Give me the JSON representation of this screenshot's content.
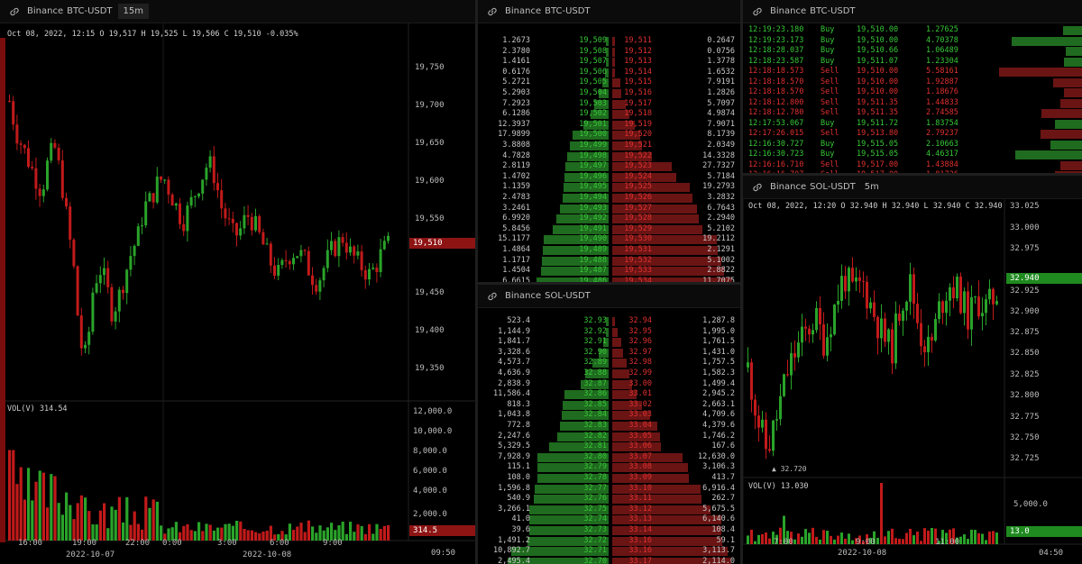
{
  "colors": {
    "up": "#2aa32a",
    "down": "#c21a1a",
    "bid_text": "#37c837",
    "ask_text": "#e03030",
    "bid_bar": "#1f6b1f",
    "ask_bar": "#6b1414",
    "text": "#c8c8c8"
  },
  "panels": {
    "chart_btc": {
      "exchange": "Binance",
      "symbol": "BTC-USDT",
      "timeframe": "15m",
      "ohlc": {
        "date": "Oct 08, 2022, 12:15",
        "o": "19,517",
        "h": "19,525",
        "l": "19,506",
        "c": "19,510",
        "chg": "-0.035%"
      },
      "price_axis": [
        "19,750",
        "19,700",
        "19,650",
        "19,600",
        "19,550",
        "19,510",
        "19,450",
        "19,400",
        "19,350"
      ],
      "current_price": "19,510",
      "volume": {
        "label": "VOL(V)",
        "value": "314.54",
        "axis": [
          "12,000.0",
          "10,000.0",
          "8,000.0",
          "6,000.0",
          "4,000.0",
          "2,000.0"
        ],
        "current": "314.5"
      },
      "time_axis": [
        "16:00",
        "19:00",
        "22:00",
        "0:00",
        "3:00",
        "6:00",
        "9:00"
      ],
      "date_axis": [
        "2022-10-07",
        "2022-10-08"
      ],
      "clock": "09:50"
    },
    "book_btc": {
      "exchange": "Binance",
      "symbol": "BTC-USDT",
      "rows": [
        [
          "1.2673",
          "19,509",
          "19,511",
          "0.2647"
        ],
        [
          "2.3780",
          "19,508",
          "19,512",
          "0.0756"
        ],
        [
          "1.4161",
          "19,507",
          "19,513",
          "1.3778"
        ],
        [
          "0.6176",
          "19,506",
          "19,514",
          "1.6532"
        ],
        [
          "5.2721",
          "19,505",
          "19,515",
          "7.9191"
        ],
        [
          "5.2903",
          "19,504",
          "19,516",
          "1.2826"
        ],
        [
          "7.2923",
          "19,503",
          "19,517",
          "5.7097"
        ],
        [
          "6.1286",
          "19,502",
          "19,518",
          "4.9874"
        ],
        [
          "12.3937",
          "19,501",
          "19,519",
          "7.9071"
        ],
        [
          "17.9899",
          "19,500",
          "19,520",
          "8.1739"
        ],
        [
          "3.8808",
          "19,499",
          "19,521",
          "2.0349"
        ],
        [
          "4.7828",
          "19,498",
          "19,522",
          "14.3328"
        ],
        [
          "2.8119",
          "19,497",
          "19,523",
          "27.7327"
        ],
        [
          "1.4702",
          "19,496",
          "19,524",
          "5.7184"
        ],
        [
          "1.1359",
          "19,495",
          "19,525",
          "19.2793"
        ],
        [
          "2.4783",
          "19,494",
          "19,526",
          "3.2832"
        ],
        [
          "3.2461",
          "19,493",
          "19,527",
          "6.7643"
        ],
        [
          "6.9920",
          "19,492",
          "19,528",
          "2.2940"
        ],
        [
          "5.8456",
          "19,491",
          "19,529",
          "5.2102"
        ],
        [
          "15.1177",
          "19,490",
          "19,530",
          "19.2112"
        ],
        [
          "1.4864",
          "19,489",
          "19,531",
          "2.1291"
        ],
        [
          "1.1717",
          "19,488",
          "19,532",
          "5.1002"
        ],
        [
          "1.4504",
          "19,487",
          "19,533",
          "2.8822"
        ],
        [
          "6.6615",
          "19,486",
          "19,534",
          "11.7075"
        ]
      ]
    },
    "book_sol": {
      "exchange": "Binance",
      "symbol": "SOL-USDT",
      "rows": [
        [
          "523.4",
          "32.93",
          "32.94",
          "1,287.8"
        ],
        [
          "1,144.9",
          "32.92",
          "32.95",
          "1,995.0"
        ],
        [
          "1,841.7",
          "32.91",
          "32.96",
          "1,761.5"
        ],
        [
          "3,328.6",
          "32.90",
          "32.97",
          "1,431.0"
        ],
        [
          "4,573.7",
          "32.89",
          "32.98",
          "1,757.5"
        ],
        [
          "4,636.9",
          "32.88",
          "32.99",
          "1,582.3"
        ],
        [
          "2,838.9",
          "32.87",
          "33.00",
          "1,499.4"
        ],
        [
          "11,586.4",
          "32.86",
          "33.01",
          "2,945.2"
        ],
        [
          "818.3",
          "32.85",
          "33.02",
          "2,663.1"
        ],
        [
          "1,043.8",
          "32.84",
          "33.03",
          "4,709.6"
        ],
        [
          "772.8",
          "32.83",
          "33.04",
          "4,379.6"
        ],
        [
          "2,247.6",
          "32.82",
          "33.05",
          "1,746.2"
        ],
        [
          "5,329.5",
          "32.81",
          "33.06",
          "167.6"
        ],
        [
          "7,928.9",
          "32.80",
          "33.07",
          "12,630.0"
        ],
        [
          "115.1",
          "32.79",
          "33.08",
          "3,106.3"
        ],
        [
          "108.0",
          "32.78",
          "33.09",
          "413.7"
        ],
        [
          "1,596.8",
          "32.77",
          "33.10",
          "6,916.4"
        ],
        [
          "540.9",
          "32.76",
          "33.11",
          "262.7"
        ],
        [
          "3,266.1",
          "32.75",
          "33.12",
          "5,675.5"
        ],
        [
          "41.0",
          "32.74",
          "33.13",
          "6,140.6"
        ],
        [
          "39.6",
          "32.73",
          "33.14",
          "108.4"
        ],
        [
          "1,491.2",
          "32.72",
          "33.16",
          "59.1"
        ],
        [
          "10,892.7",
          "32.71",
          "33.16",
          "3,113.7"
        ],
        [
          "2,495.4",
          "32.70",
          "33.17",
          "2,114.0"
        ]
      ]
    },
    "trades_btc": {
      "exchange": "Binance",
      "symbol": "BTC-USDT",
      "rows": [
        [
          "12:19:23.180",
          "Buy",
          "19,510.00",
          "1.27625",
          0.18
        ],
        [
          "12:19:23.173",
          "Buy",
          "19,510.00",
          "4.70378",
          0.0
        ],
        [
          "12:18:28.037",
          "Buy",
          "19,510.66",
          "1.06489",
          0.0
        ],
        [
          "12:18:23.587",
          "Buy",
          "19,511.07",
          "1.23304",
          0.0
        ],
        [
          "12:18:18.573",
          "Sell",
          "19,510.00",
          "5.58161",
          0.0
        ],
        [
          "12:18:18.570",
          "Sell",
          "19,510.00",
          "1.92887",
          0.06
        ],
        [
          "12:18:18.570",
          "Sell",
          "19,510.00",
          "1.18676",
          0.0
        ],
        [
          "12:18:12.800",
          "Sell",
          "19,511.35",
          "1.44833",
          0.04
        ],
        [
          "12:18:12.780",
          "Sell",
          "19,511.35",
          "2.74585",
          0.0
        ],
        [
          "12:17:53.067",
          "Buy",
          "19,511.72",
          "1.83754",
          0.0
        ],
        [
          "12:17:26.015",
          "Sell",
          "19,513.80",
          "2.79237",
          0.0
        ],
        [
          "12:16:30.727",
          "Buy",
          "19,515.05",
          "2.10663",
          0.0
        ],
        [
          "12:16:30.723",
          "Buy",
          "19,515.05",
          "4.46317",
          0.0
        ],
        [
          "12:16:16.710",
          "Sell",
          "19,517.00",
          "1.43884",
          0.0
        ],
        [
          "12:16:16.707",
          "Sell",
          "19,517.00",
          "1.81726",
          0.0
        ]
      ]
    },
    "chart_sol": {
      "exchange": "Binance",
      "symbol": "SOL-USDT",
      "timeframe": "5m",
      "ohlc": {
        "date": "Oct 08, 2022, 12:20",
        "o": "32.940",
        "h": "32.940",
        "l": "32.940",
        "c": "32.940"
      },
      "price_axis": [
        "33.025",
        "33.000",
        "32.975",
        "32.940",
        "32.925",
        "32.900",
        "32.875",
        "32.850",
        "32.825",
        "32.800",
        "32.775",
        "32.750",
        "32.725"
      ],
      "current_price": "32.940",
      "low_marker": "32.720",
      "volume": {
        "label": "VOL(V)",
        "value": "13.030",
        "axis": [
          "5,000.0"
        ],
        "current": "13.0"
      },
      "time_axis": [
        "7:00",
        "9:00",
        "11:00"
      ],
      "date_axis": [
        "2022-10-08"
      ],
      "clock": "04:50"
    }
  }
}
